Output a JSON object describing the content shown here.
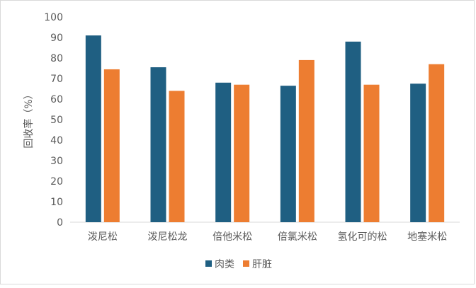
{
  "chart_data": {
    "type": "bar",
    "categories": [
      "泼尼松",
      "泼尼松龙",
      "倍他米松",
      "倍氯米松",
      "氢化可的松",
      "地塞米松"
    ],
    "series": [
      {
        "name": "肉类",
        "color": "#1f5f82",
        "values": [
          91,
          75.5,
          68,
          66.5,
          88,
          67.5
        ]
      },
      {
        "name": "肝脏",
        "color": "#ed7d31",
        "values": [
          74.5,
          64,
          67,
          79,
          67,
          77
        ]
      }
    ],
    "title": "",
    "xlabel": "",
    "ylabel": "回收率（%）",
    "ylim": [
      0,
      100
    ],
    "yticks": [
      0,
      10,
      20,
      30,
      40,
      50,
      60,
      70,
      80,
      90,
      100
    ],
    "grid": false,
    "legend_position": "bottom"
  }
}
